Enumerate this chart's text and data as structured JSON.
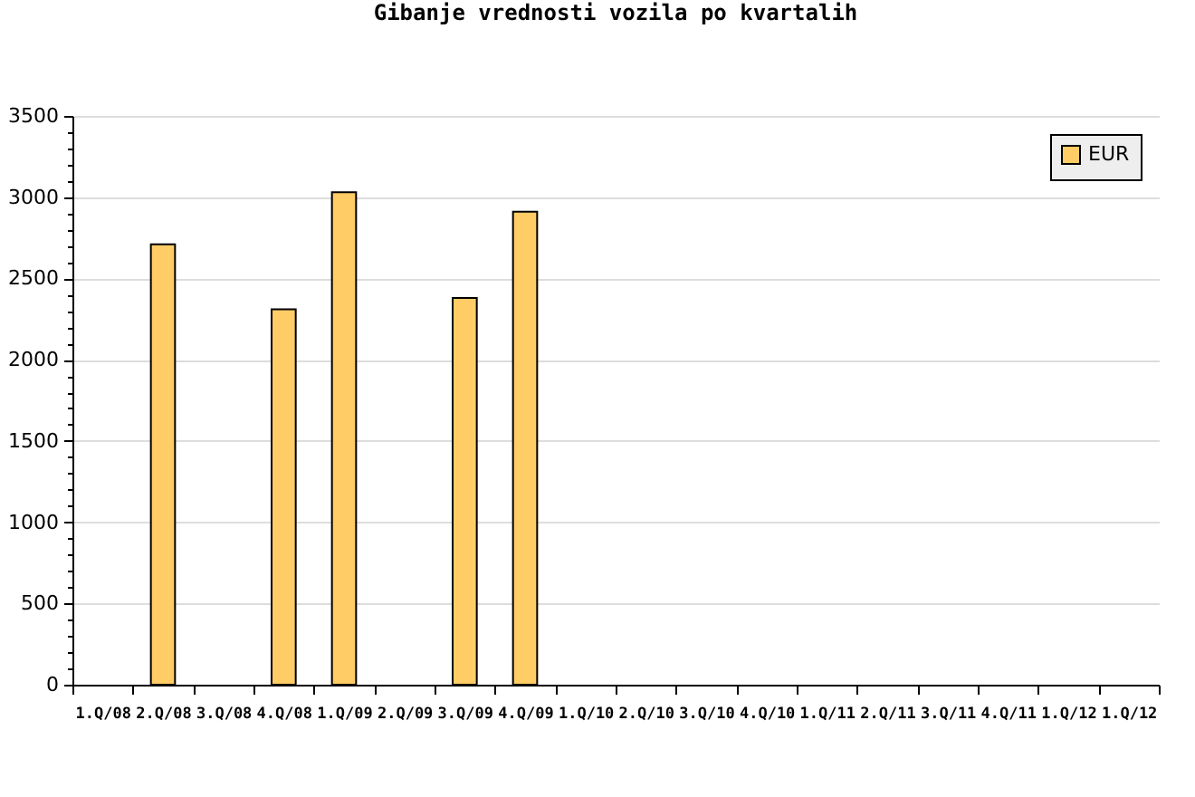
{
  "chart_data": {
    "type": "bar",
    "title": "Gibanje vrednosti vozila po kvartalih",
    "categories": [
      "1.Q/08",
      "2.Q/08",
      "3.Q/08",
      "4.Q/08",
      "1.Q/09",
      "2.Q/09",
      "3.Q/09",
      "4.Q/09",
      "1.Q/10",
      "2.Q/10",
      "3.Q/10",
      "4.Q/10",
      "1.Q/11",
      "2.Q/11",
      "3.Q/11",
      "4.Q/11",
      "1.Q/12",
      "1.Q/12"
    ],
    "series": [
      {
        "name": "EUR",
        "color": "#ffcc66",
        "values": [
          null,
          2710,
          null,
          2310,
          3030,
          null,
          2380,
          2910,
          null,
          null,
          null,
          null,
          null,
          null,
          null,
          null,
          null,
          null
        ]
      }
    ],
    "ylim": [
      0,
      3500
    ],
    "yticks": [
      0,
      {
        "value": 100,
        "label": null
      },
      {
        "value": 200,
        "label": null
      },
      {
        "value": 300,
        "label": null
      },
      {
        "value": 400,
        "label": null
      },
      500,
      {
        "value": 600,
        "label": null
      },
      {
        "value": 700,
        "label": null
      },
      {
        "value": 800,
        "label": null
      },
      {
        "value": 900,
        "label": null
      },
      1000,
      {
        "value": 1100,
        "label": null
      },
      {
        "value": 1200,
        "label": null
      },
      {
        "value": 1300,
        "label": null
      },
      {
        "value": 1400,
        "label": null
      },
      1500,
      {
        "value": 1600,
        "label": null
      },
      {
        "value": 1700,
        "label": null
      },
      {
        "value": 1800,
        "label": null
      },
      {
        "value": 1900,
        "label": null
      },
      2000,
      {
        "value": 2100,
        "label": null
      },
      {
        "value": 2200,
        "label": null
      },
      {
        "value": 2300,
        "label": null
      },
      {
        "value": 2400,
        "label": null
      },
      2500,
      {
        "value": 2600,
        "label": null
      },
      {
        "value": 2700,
        "label": null
      },
      {
        "value": 2800,
        "label": null
      },
      {
        "value": 2900,
        "label": null
      },
      3000,
      {
        "value": 3100,
        "label": null
      },
      {
        "value": 3200,
        "label": null
      },
      {
        "value": 3300,
        "label": null
      },
      {
        "value": 3400,
        "label": null
      },
      3500
    ],
    "grid": "y",
    "legend": "top right"
  }
}
